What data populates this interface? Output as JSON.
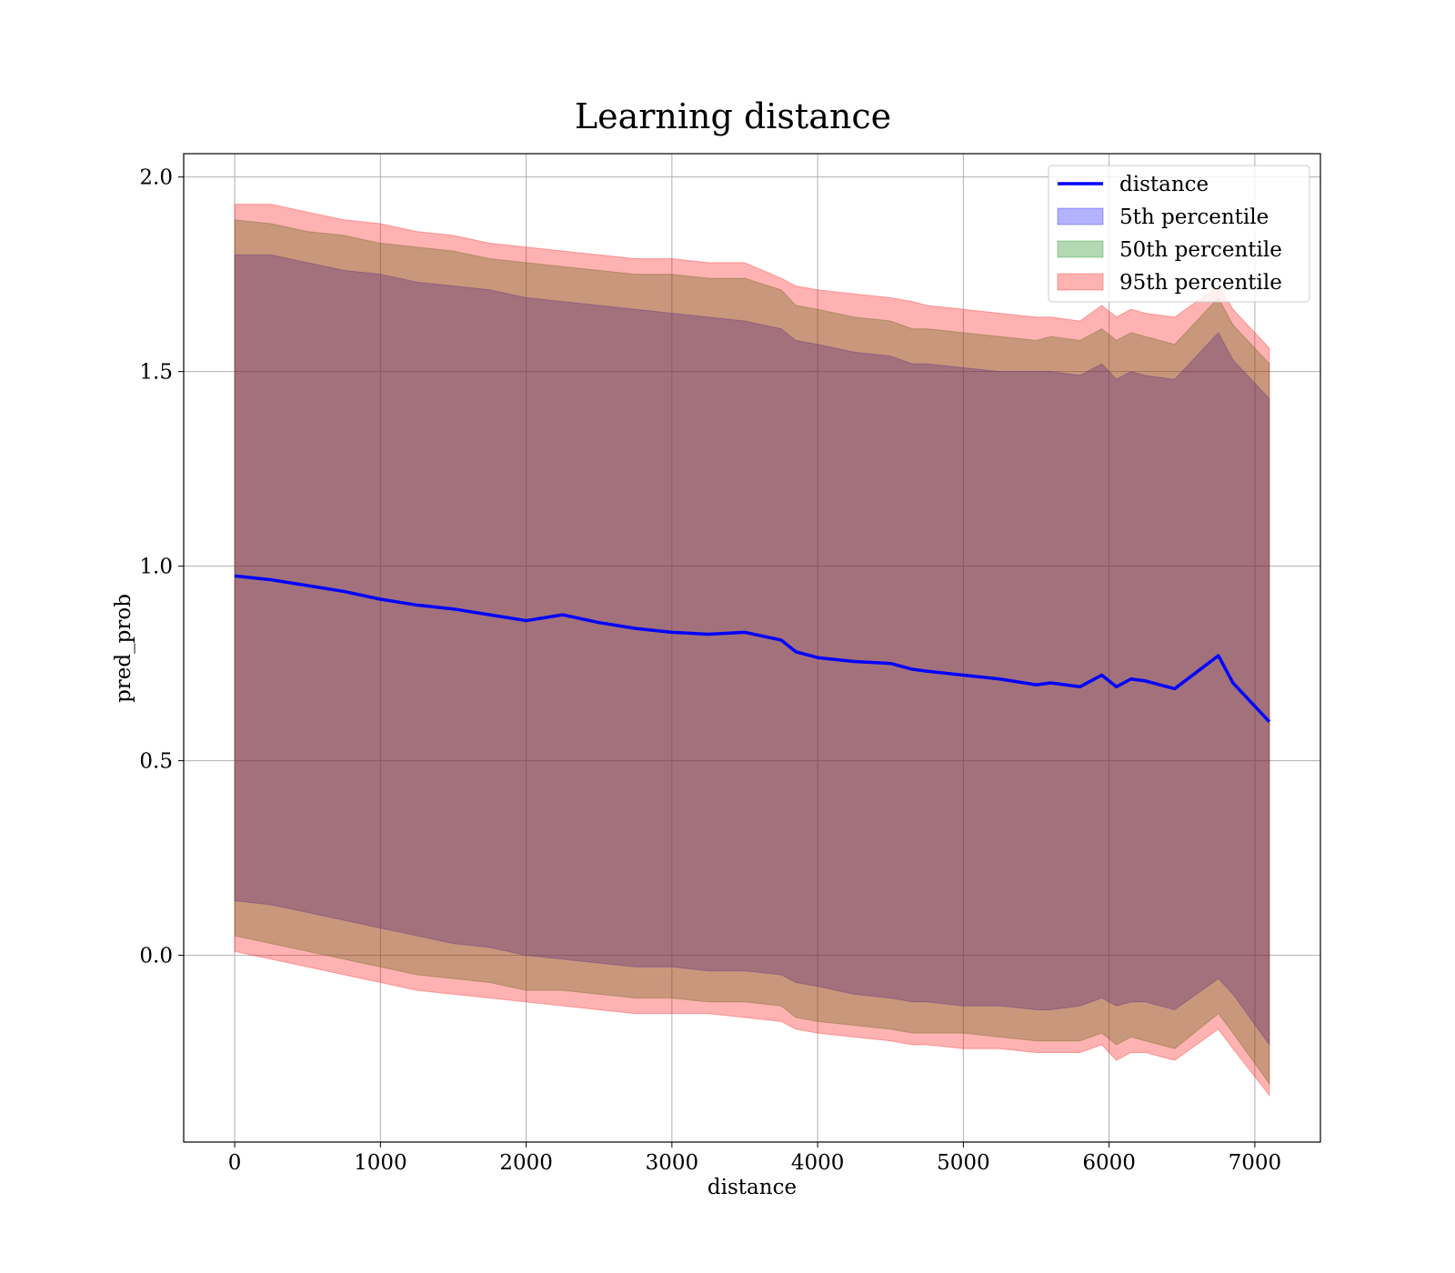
{
  "chart_data": {
    "type": "line",
    "title": "Learning distance",
    "xlabel": "distance",
    "ylabel": "pred_prob",
    "xlim": [
      -350,
      7450
    ],
    "ylim": [
      -0.48,
      2.06
    ],
    "xticks": [
      0,
      1000,
      2000,
      3000,
      4000,
      5000,
      6000,
      7000
    ],
    "yticks": [
      0.0,
      0.5,
      1.0,
      1.5,
      2.0
    ],
    "xtick_labels": [
      "0",
      "1000",
      "2000",
      "3000",
      "4000",
      "5000",
      "6000",
      "7000"
    ],
    "ytick_labels": [
      "0.0",
      "0.5",
      "1.0",
      "1.5",
      "2.0"
    ],
    "grid": true,
    "legend_position": "top-right",
    "x": [
      0,
      250,
      500,
      750,
      1000,
      1250,
      1500,
      1750,
      2000,
      2250,
      2500,
      2750,
      3000,
      3250,
      3500,
      3750,
      3850,
      4000,
      4250,
      4500,
      4650,
      4750,
      5000,
      5250,
      5500,
      5600,
      5800,
      5950,
      6050,
      6150,
      6250,
      6450,
      6750,
      6850,
      7100
    ],
    "series": [
      {
        "name": "distance",
        "kind": "line",
        "color": "#0000ff",
        "values": [
          0.975,
          0.965,
          0.95,
          0.935,
          0.915,
          0.9,
          0.89,
          0.875,
          0.86,
          0.875,
          0.855,
          0.84,
          0.83,
          0.825,
          0.83,
          0.81,
          0.78,
          0.765,
          0.755,
          0.75,
          0.735,
          0.73,
          0.72,
          0.71,
          0.695,
          0.7,
          0.69,
          0.72,
          0.69,
          0.71,
          0.705,
          0.685,
          0.77,
          0.7,
          0.6
        ]
      },
      {
        "name": "5th percentile",
        "kind": "band",
        "color": "#0000ff",
        "lower": [
          0.14,
          0.13,
          0.11,
          0.09,
          0.07,
          0.05,
          0.03,
          0.02,
          0.0,
          -0.01,
          -0.02,
          -0.03,
          -0.03,
          -0.04,
          -0.04,
          -0.05,
          -0.07,
          -0.08,
          -0.1,
          -0.11,
          -0.12,
          -0.12,
          -0.13,
          -0.13,
          -0.14,
          -0.14,
          -0.13,
          -0.11,
          -0.13,
          -0.12,
          -0.12,
          -0.14,
          -0.06,
          -0.1,
          -0.23
        ],
        "upper": [
          1.8,
          1.8,
          1.78,
          1.76,
          1.75,
          1.73,
          1.72,
          1.71,
          1.69,
          1.68,
          1.67,
          1.66,
          1.65,
          1.64,
          1.63,
          1.61,
          1.58,
          1.57,
          1.55,
          1.54,
          1.52,
          1.52,
          1.51,
          1.5,
          1.5,
          1.5,
          1.49,
          1.52,
          1.48,
          1.5,
          1.49,
          1.48,
          1.6,
          1.53,
          1.43
        ]
      },
      {
        "name": "50th percentile",
        "kind": "band",
        "color": "#008000",
        "lower": [
          0.05,
          0.03,
          0.01,
          -0.01,
          -0.03,
          -0.05,
          -0.06,
          -0.07,
          -0.09,
          -0.09,
          -0.1,
          -0.11,
          -0.11,
          -0.12,
          -0.12,
          -0.13,
          -0.16,
          -0.17,
          -0.18,
          -0.19,
          -0.2,
          -0.2,
          -0.2,
          -0.21,
          -0.22,
          -0.22,
          -0.22,
          -0.2,
          -0.23,
          -0.21,
          -0.22,
          -0.24,
          -0.15,
          -0.2,
          -0.33
        ],
        "upper": [
          1.89,
          1.88,
          1.86,
          1.85,
          1.83,
          1.82,
          1.81,
          1.79,
          1.78,
          1.77,
          1.76,
          1.75,
          1.75,
          1.74,
          1.74,
          1.71,
          1.67,
          1.66,
          1.64,
          1.63,
          1.61,
          1.61,
          1.6,
          1.59,
          1.58,
          1.59,
          1.58,
          1.61,
          1.58,
          1.6,
          1.59,
          1.57,
          1.69,
          1.62,
          1.52
        ]
      },
      {
        "name": "95th percentile",
        "kind": "band",
        "color": "#ff0000",
        "lower": [
          0.01,
          -0.01,
          -0.03,
          -0.05,
          -0.07,
          -0.09,
          -0.1,
          -0.11,
          -0.12,
          -0.13,
          -0.14,
          -0.15,
          -0.15,
          -0.15,
          -0.16,
          -0.17,
          -0.19,
          -0.2,
          -0.21,
          -0.22,
          -0.23,
          -0.23,
          -0.24,
          -0.24,
          -0.25,
          -0.25,
          -0.25,
          -0.23,
          -0.27,
          -0.25,
          -0.25,
          -0.27,
          -0.19,
          -0.24,
          -0.36
        ],
        "upper": [
          1.93,
          1.93,
          1.91,
          1.89,
          1.88,
          1.86,
          1.85,
          1.83,
          1.82,
          1.81,
          1.8,
          1.79,
          1.79,
          1.78,
          1.78,
          1.74,
          1.72,
          1.71,
          1.7,
          1.69,
          1.68,
          1.67,
          1.66,
          1.65,
          1.64,
          1.64,
          1.63,
          1.67,
          1.64,
          1.66,
          1.65,
          1.64,
          1.72,
          1.66,
          1.56
        ]
      }
    ]
  }
}
